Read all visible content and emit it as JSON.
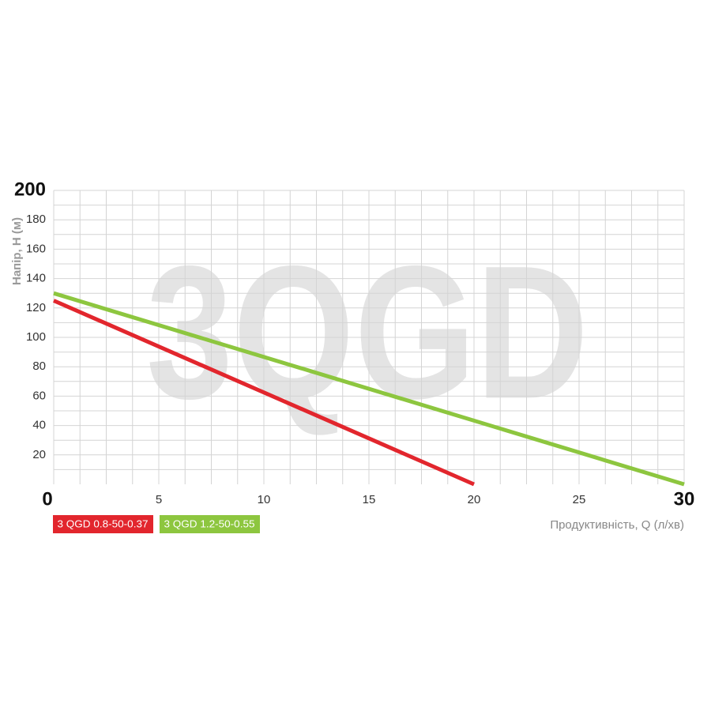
{
  "chart_data": {
    "type": "line",
    "watermark": "3QGD",
    "x_label": "Продуктивність, Q (л/хв)",
    "y_label": "Напір, Н (м)",
    "series": [
      {
        "name": "3 QGD 0.8-50-0.37",
        "color": "#e2262d",
        "x": [
          0,
          20
        ],
        "values": [
          125,
          0
        ]
      },
      {
        "name": "3 QGD 1.2-50-0.55",
        "color": "#8dc63f",
        "x": [
          0,
          30
        ],
        "values": [
          130,
          0
        ]
      }
    ],
    "xlim": [
      0,
      30
    ],
    "xticks": [
      0,
      5,
      10,
      15,
      20,
      25,
      30
    ],
    "ylim": [
      0,
      200
    ],
    "yticks": [
      20,
      40,
      60,
      80,
      100,
      120,
      140,
      160,
      180,
      200
    ],
    "grid": true
  }
}
